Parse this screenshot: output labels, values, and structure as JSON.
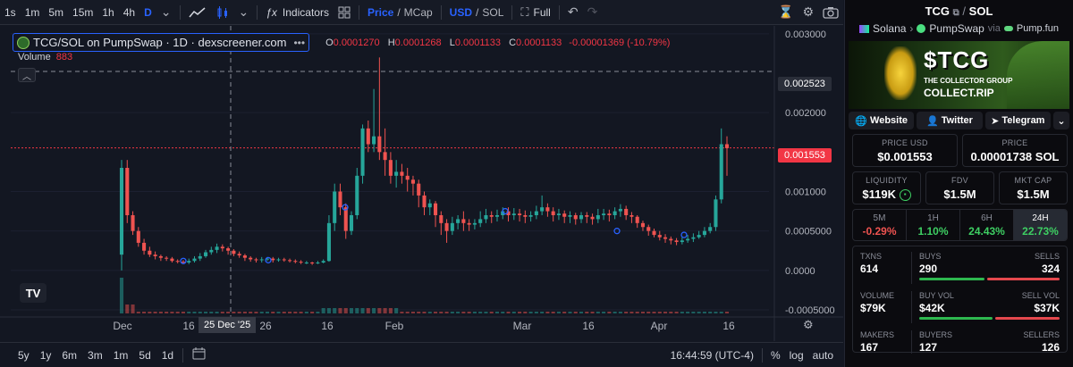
{
  "toolbar": {
    "intervals": [
      "1s",
      "1m",
      "5m",
      "15m",
      "1h",
      "4h",
      "D"
    ],
    "active_interval": "D",
    "indicators_label": "Indicators",
    "price_label": "Price",
    "mcap_label": "MCap",
    "usd_label": "USD",
    "sol_label": "SOL",
    "full_label": "Full",
    "slash": "/"
  },
  "legend": {
    "pair": "TCG/SOL on PumpSwap · 1D · dexscreener.com",
    "o_label": "O",
    "o": "0.0001270",
    "h_label": "H",
    "h": "0.0001268",
    "l_label": "L",
    "l": "0.0001133",
    "c_label": "C",
    "c": "0.0001133",
    "change": "-0.00001369 (-10.79%)",
    "volume_label": "Volume",
    "volume": "883"
  },
  "price_axis": {
    "ticks": [
      "0.003000",
      "0.002000",
      "0.001000",
      "0.0005000",
      "0.0000",
      "-0.0005000"
    ],
    "tick_values": [
      0.003,
      0.002,
      0.001,
      0.0005,
      0.0,
      -0.0005
    ],
    "crosshair_label": "0.002523",
    "crosshair_value": 0.002523,
    "last_price_label": "0.001553",
    "last_price_value": 0.001553
  },
  "time_axis": {
    "labels": [
      "Dec",
      "16",
      "26",
      "16",
      "Feb",
      "Mar",
      "16",
      "Apr",
      "16"
    ],
    "crosshair_label": "25 Dec '25"
  },
  "bottombar": {
    "ranges": [
      "5y",
      "1y",
      "6m",
      "3m",
      "1m",
      "5d",
      "1d"
    ],
    "time": "16:44:59 (UTC-4)",
    "pct": "%",
    "log": "log",
    "auto": "auto"
  },
  "chart_data": {
    "type": "candlestick",
    "title": "TCG/SOL on PumpSwap · 1D · dexscreener.com",
    "ylim": [
      -0.0005,
      0.0031
    ],
    "candles": [
      [
        0.0002,
        0.0013,
        0.0014,
        0.0
      ],
      [
        0.0013,
        0.0007,
        0.0014,
        0.0006
      ],
      [
        0.0007,
        0.0005,
        0.00075,
        0.00045
      ],
      [
        0.0005,
        0.00035,
        0.00055,
        0.0003
      ],
      [
        0.00035,
        0.00025,
        0.0004,
        0.0002
      ],
      [
        0.00025,
        0.0002,
        0.0003,
        0.00017
      ],
      [
        0.0002,
        0.00018,
        0.00024,
        0.00014
      ],
      [
        0.00018,
        0.00016,
        0.0002,
        0.00012
      ],
      [
        0.00016,
        0.00015,
        0.00018,
        0.00012
      ],
      [
        0.00015,
        0.00012,
        0.00017,
        0.0001
      ],
      [
        0.00012,
        0.00011,
        0.00014,
        9e-05
      ],
      [
        0.00011,
        0.0001,
        0.00013,
        8e-05
      ],
      [
        0.0001,
        0.00012,
        0.00015,
        8e-05
      ],
      [
        0.00012,
        0.00015,
        0.00018,
        0.0001
      ],
      [
        0.00015,
        0.00018,
        0.00022,
        0.00012
      ],
      [
        0.00018,
        0.00023,
        0.00026,
        0.00016
      ],
      [
        0.00023,
        0.00026,
        0.0003,
        0.0002
      ],
      [
        0.00026,
        0.0003,
        0.00034,
        0.00022
      ],
      [
        0.0003,
        0.00028,
        0.00033,
        0.00024
      ],
      [
        0.00028,
        0.00025,
        0.0003,
        0.0002
      ],
      [
        0.00025,
        0.00021,
        0.00027,
        0.00018
      ],
      [
        0.00021,
        0.00019,
        0.00024,
        0.00016
      ],
      [
        0.00019,
        0.00016,
        0.00021,
        0.00012
      ],
      [
        0.00016,
        0.00014,
        0.00018,
        0.00011
      ],
      [
        0.00014,
        0.00013,
        0.00016,
        0.0001
      ],
      [
        0.00013,
        0.00014,
        0.00017,
        0.0001
      ],
      [
        0.00014,
        0.00015,
        0.00017,
        0.00012
      ],
      [
        0.00015,
        0.00013,
        0.00017,
        0.0001
      ],
      [
        0.00013,
        0.00014,
        0.00016,
        0.00011
      ],
      [
        0.00014,
        0.00013,
        0.00016,
        0.00011
      ],
      [
        0.00013,
        0.00012,
        0.00015,
        0.0001
      ],
      [
        0.00012,
        0.00011,
        0.00014,
        9e-05
      ],
      [
        0.00011,
        0.0001,
        0.00013,
        8e-05
      ],
      [
        0.0001,
        0.0001,
        0.00012,
        8e-05
      ],
      [
        0.0001,
        9e-05,
        0.00011,
        7e-05
      ],
      [
        9e-05,
        0.0001,
        0.00012,
        8e-05
      ],
      [
        0.0001,
        0.00012,
        0.00014,
        9e-05
      ],
      [
        0.00012,
        0.0006,
        0.0007,
        0.00011
      ],
      [
        0.0006,
        0.001,
        0.0011,
        0.0005
      ],
      [
        0.001,
        0.0008,
        0.0011,
        0.0007
      ],
      [
        0.0008,
        0.0005,
        0.00085,
        0.0004
      ],
      [
        0.0005,
        0.0007,
        0.00075,
        0.00045
      ],
      [
        0.0007,
        0.0012,
        0.0013,
        0.00065
      ],
      [
        0.0012,
        0.0018,
        0.00185,
        0.0011
      ],
      [
        0.0018,
        0.0016,
        0.0019,
        0.0015
      ],
      [
        0.0016,
        0.0017,
        0.0023,
        0.0015
      ],
      [
        0.0017,
        0.0015,
        0.0027,
        0.0014
      ],
      [
        0.0015,
        0.0014,
        0.0018,
        0.0012
      ],
      [
        0.0014,
        0.0012,
        0.0015,
        0.0011
      ],
      [
        0.0012,
        0.00125,
        0.0014,
        0.00105
      ],
      [
        0.00125,
        0.0012,
        0.00135,
        0.0011
      ],
      [
        0.0012,
        0.00115,
        0.0013,
        0.001
      ],
      [
        0.00115,
        0.0011,
        0.0012,
        0.00095
      ],
      [
        0.0011,
        0.00095,
        0.00115,
        0.0008
      ],
      [
        0.00095,
        0.0008,
        0.001,
        0.0007
      ],
      [
        0.0008,
        0.00085,
        0.0009,
        0.0007
      ],
      [
        0.00085,
        0.0007,
        0.00088,
        0.00055
      ],
      [
        0.0007,
        0.0006,
        0.00075,
        0.00045
      ],
      [
        0.0006,
        0.0005,
        0.00065,
        0.00035
      ],
      [
        0.0005,
        0.0006,
        0.00068,
        0.00045
      ],
      [
        0.0006,
        0.00065,
        0.0007,
        0.00052
      ],
      [
        0.00065,
        0.0006,
        0.00075,
        0.0005
      ],
      [
        0.0006,
        0.00058,
        0.00065,
        0.0005
      ],
      [
        0.00058,
        0.0006,
        0.00065,
        0.00052
      ],
      [
        0.0006,
        0.00065,
        0.00075,
        0.00055
      ],
      [
        0.00065,
        0.0007,
        0.00078,
        0.0006
      ],
      [
        0.0007,
        0.00068,
        0.00075,
        0.0006
      ],
      [
        0.00068,
        0.0007,
        0.00077,
        0.00062
      ],
      [
        0.0007,
        0.00075,
        0.0008,
        0.00065
      ],
      [
        0.00075,
        0.0007,
        0.0008,
        0.00062
      ],
      [
        0.0007,
        0.00072,
        0.00079,
        0.00064
      ],
      [
        0.00072,
        0.0007,
        0.00078,
        0.00062
      ],
      [
        0.0007,
        0.00068,
        0.00076,
        0.0006
      ],
      [
        0.00068,
        0.0007,
        0.00075,
        0.00062
      ],
      [
        0.0007,
        0.00075,
        0.00082,
        0.00065
      ],
      [
        0.00075,
        0.0008,
        0.00095,
        0.0007
      ],
      [
        0.0008,
        0.00075,
        0.00085,
        0.00068
      ],
      [
        0.00075,
        0.0007,
        0.0008,
        0.00062
      ],
      [
        0.0007,
        0.00072,
        0.00078,
        0.00064
      ],
      [
        0.00072,
        0.00068,
        0.00076,
        0.0006
      ],
      [
        0.00068,
        0.0007,
        0.00075,
        0.0006
      ],
      [
        0.0007,
        0.00065,
        0.00073,
        0.00058
      ],
      [
        0.00065,
        0.0007,
        0.00074,
        0.0006
      ],
      [
        0.0007,
        0.00068,
        0.00074,
        0.0006
      ],
      [
        0.00068,
        0.00065,
        0.00072,
        0.00058
      ],
      [
        0.00065,
        0.0007,
        0.00078,
        0.0006
      ],
      [
        0.0007,
        0.00072,
        0.00078,
        0.00064
      ],
      [
        0.00072,
        0.0007,
        0.00077,
        0.00062
      ],
      [
        0.0007,
        0.00075,
        0.0008,
        0.00065
      ],
      [
        0.00075,
        0.00078,
        0.00084,
        0.00068
      ],
      [
        0.00078,
        0.0007,
        0.00082,
        0.00064
      ],
      [
        0.0007,
        0.00068,
        0.00074,
        0.0006
      ],
      [
        0.00068,
        0.0006,
        0.0007,
        0.00054
      ],
      [
        0.0006,
        0.00055,
        0.00063,
        0.0005
      ],
      [
        0.00055,
        0.0005,
        0.00058,
        0.00044
      ],
      [
        0.0005,
        0.00045,
        0.00053,
        0.00042
      ],
      [
        0.00045,
        0.00042,
        0.0005,
        0.00038
      ],
      [
        0.00042,
        0.0004,
        0.00046,
        0.00035
      ],
      [
        0.0004,
        0.00038,
        0.00043,
        0.00033
      ],
      [
        0.00038,
        0.00036,
        0.00041,
        0.00032
      ],
      [
        0.00036,
        0.00038,
        0.00042,
        0.00033
      ],
      [
        0.00038,
        0.0004,
        0.00045,
        0.00035
      ],
      [
        0.0004,
        0.00042,
        0.00047,
        0.00036
      ],
      [
        0.00042,
        0.00045,
        0.0005,
        0.0004
      ],
      [
        0.00045,
        0.0005,
        0.00055,
        0.00042
      ],
      [
        0.0005,
        0.00055,
        0.0006,
        0.00047
      ],
      [
        0.00055,
        0.0009,
        0.00095,
        0.0005
      ],
      [
        0.0009,
        0.0016,
        0.0018,
        0.00085
      ],
      [
        0.0016,
        0.00155,
        0.0017,
        0.0012
      ]
    ],
    "volume_note": "small volume bars along bottom"
  },
  "panel": {
    "symbol": "TCG",
    "quote": "SOL",
    "slash": "/",
    "chain": "Solana",
    "dex": "PumpSwap",
    "via": "via",
    "launchpad": "Pump.fun",
    "banner_ticker": "$TCG",
    "banner_sub1": "THE COLLECTOR GROUP",
    "banner_sub2": "COLLECT.RIP",
    "links": {
      "website": "Website",
      "twitter": "Twitter",
      "telegram": "Telegram"
    },
    "price_usd_label": "PRICE USD",
    "price_usd": "$0.001553",
    "price_label": "PRICE",
    "price_sol": "0.00001738 SOL",
    "liquidity_label": "LIQUIDITY",
    "liquidity": "$119K",
    "fdv_label": "FDV",
    "fdv": "$1.5M",
    "mktcap_label": "MKT CAP",
    "mktcap": "$1.5M",
    "timeframes": [
      {
        "label": "5M",
        "value": "-0.29%",
        "color": "#ef5350"
      },
      {
        "label": "1H",
        "value": "1.10%",
        "color": "#3ecf63"
      },
      {
        "label": "6H",
        "value": "24.43%",
        "color": "#3ecf63"
      },
      {
        "label": "24H",
        "value": "22.73%",
        "color": "#3ecf63"
      }
    ],
    "txns_label": "TXNS",
    "txns": "614",
    "buys_label": "BUYS",
    "buys": "290",
    "sells_label": "SELLS",
    "sells": "324",
    "volume_label": "VOLUME",
    "volume": "$79K",
    "buyvol_label": "BUY VOL",
    "buyvol": "$42K",
    "sellvol_label": "SELL VOL",
    "sellvol": "$37K",
    "makers_label": "MAKERS",
    "makers": "167",
    "buyers_label": "BUYERS",
    "buyers": "127",
    "sellers_label": "SELLERS",
    "sellers": "126"
  }
}
